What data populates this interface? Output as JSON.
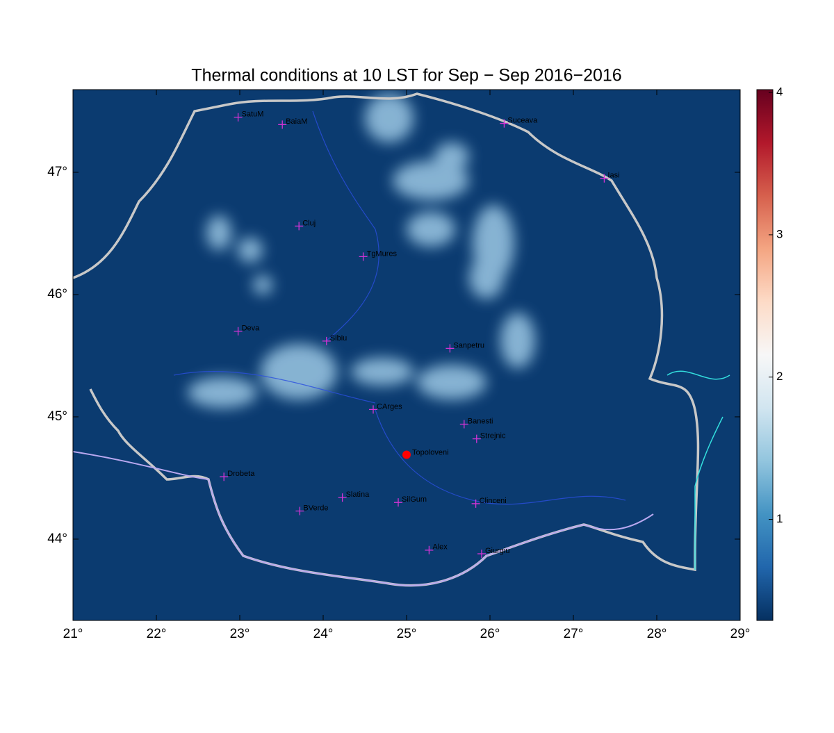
{
  "chart_data": {
    "type": "map",
    "title": "Thermal conditions at 10 LST for Sep − Sep  2016−2016",
    "xlim": [
      21,
      29
    ],
    "ylim": [
      43.335,
      47.676
    ],
    "xticks": [
      {
        "value": 21,
        "label": "21°"
      },
      {
        "value": 22,
        "label": "22°"
      },
      {
        "value": 23,
        "label": "23°"
      },
      {
        "value": 24,
        "label": "24°"
      },
      {
        "value": 25,
        "label": "25°"
      },
      {
        "value": 26,
        "label": "26°"
      },
      {
        "value": 27,
        "label": "27°"
      },
      {
        "value": 28,
        "label": "28°"
      },
      {
        "value": 29,
        "label": "29°"
      }
    ],
    "yticks": [
      {
        "value": 44,
        "label": "44°"
      },
      {
        "value": 45,
        "label": "45°"
      },
      {
        "value": 46,
        "label": "46°"
      },
      {
        "value": 47,
        "label": "47°"
      }
    ],
    "clim": [
      0.29,
      4.02
    ],
    "cticks": [
      1,
      2,
      3,
      4
    ],
    "colormap": [
      "#053061",
      "#2166ac",
      "#4393c3",
      "#92c5de",
      "#d1e5f0",
      "#f7f7f7",
      "#fddbc7",
      "#f4a582",
      "#d6604d",
      "#b2182b",
      "#67001f"
    ],
    "background": "#0b3b70",
    "marker_color": "#d633d6",
    "cities": [
      {
        "name": "SatuM",
        "lon": 22.98,
        "lat": 47.45
      },
      {
        "name": "BaiaM",
        "lon": 23.51,
        "lat": 47.39
      },
      {
        "name": "Suceava",
        "lon": 26.17,
        "lat": 47.4
      },
      {
        "name": "Iasi",
        "lon": 27.37,
        "lat": 46.95
      },
      {
        "name": "Cluj",
        "lon": 23.71,
        "lat": 46.56
      },
      {
        "name": "TgMures",
        "lon": 24.48,
        "lat": 46.31
      },
      {
        "name": "Deva",
        "lon": 22.98,
        "lat": 45.7
      },
      {
        "name": "Sibiu",
        "lon": 24.04,
        "lat": 45.62
      },
      {
        "name": "Sanpetru",
        "lon": 25.52,
        "lat": 45.56
      },
      {
        "name": "CArges",
        "lon": 24.6,
        "lat": 45.06
      },
      {
        "name": "Banesti",
        "lon": 25.69,
        "lat": 44.94
      },
      {
        "name": "Strejnic",
        "lon": 25.84,
        "lat": 44.82
      },
      {
        "name": "Drobeta",
        "lon": 22.81,
        "lat": 44.51
      },
      {
        "name": "Slatina",
        "lon": 24.23,
        "lat": 44.34
      },
      {
        "name": "SilGum",
        "lon": 24.9,
        "lat": 44.3
      },
      {
        "name": "Clinceni",
        "lon": 25.83,
        "lat": 44.29
      },
      {
        "name": "BVerde",
        "lon": 23.72,
        "lat": 44.23
      },
      {
        "name": "Alex",
        "lon": 25.27,
        "lat": 43.91
      },
      {
        "name": "Giurgiu",
        "lon": 25.9,
        "lat": 43.88
      }
    ],
    "site": {
      "name": "Topoloveni",
      "lon": 25.0,
      "lat": 44.69,
      "color": "#ff0000"
    }
  }
}
